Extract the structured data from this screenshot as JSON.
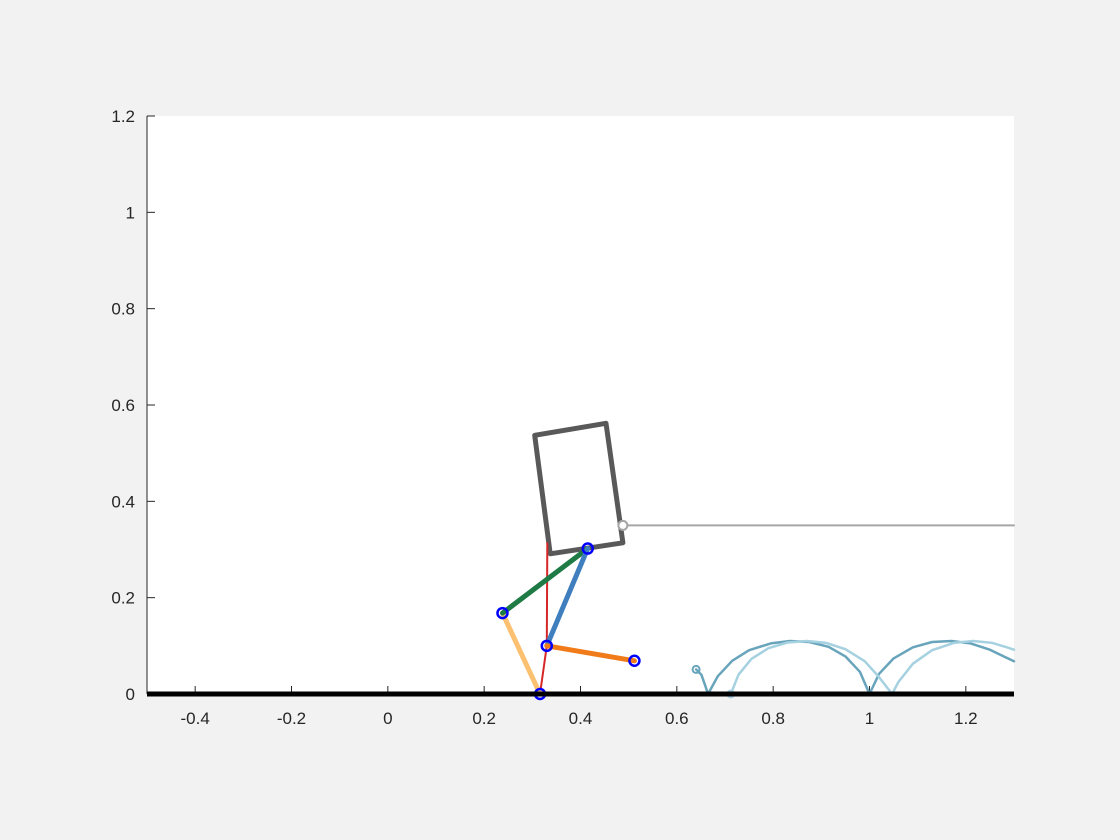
{
  "chart_data": {
    "type": "line",
    "title": "",
    "xlabel": "",
    "ylabel": "",
    "xlim": [
      -0.5,
      1.3
    ],
    "ylim": [
      0,
      1.2
    ],
    "xticks": [
      -0.4,
      -0.2,
      0,
      0.2,
      0.4,
      0.6,
      0.8,
      1,
      1.2
    ],
    "xtick_labels": [
      "-0.4",
      "-0.2",
      "0",
      "0.2",
      "0.4",
      "0.6",
      "0.8",
      "1",
      "1.2"
    ],
    "yticks": [
      0,
      0.2,
      0.4,
      0.6,
      0.8,
      1,
      1.2
    ],
    "ytick_labels": [
      "0",
      "0.2",
      "0.4",
      "0.6",
      "0.8",
      "1",
      "1.2"
    ],
    "grid": false,
    "legend": "none",
    "ground": {
      "y": 0,
      "color": "#000000"
    },
    "body_outline": {
      "color": "#595959",
      "points": [
        [
          0.305,
          0.537
        ],
        [
          0.453,
          0.562
        ],
        [
          0.488,
          0.314
        ],
        [
          0.337,
          0.291
        ]
      ]
    },
    "segments": [
      {
        "name": "",
        "color": "#d62728",
        "width": 2,
        "points": [
          [
            0.316,
            0.0
          ],
          [
            0.33,
            0.1
          ],
          [
            0.331,
            0.313
          ]
        ]
      },
      {
        "name": "",
        "color": "#fbc171",
        "width": 5,
        "points": [
          [
            0.316,
            0.0
          ],
          [
            0.238,
            0.168
          ]
        ]
      },
      {
        "name": "",
        "color": "#1e7b45",
        "width": 5,
        "points": [
          [
            0.238,
            0.168
          ],
          [
            0.415,
            0.302
          ]
        ]
      },
      {
        "name": "",
        "color": "#3f7fbe",
        "width": 5,
        "points": [
          [
            0.33,
            0.1
          ],
          [
            0.415,
            0.302
          ]
        ]
      },
      {
        "name": "",
        "color": "#f07b18",
        "width": 5,
        "points": [
          [
            0.33,
            0.1
          ],
          [
            0.512,
            0.069
          ]
        ]
      },
      {
        "name": "",
        "color": "#a6a6a6",
        "width": 2,
        "points": [
          [
            0.488,
            0.35
          ],
          [
            1.3,
            0.35
          ]
        ]
      }
    ],
    "joints": {
      "color": "#0000ff",
      "points": [
        [
          0.316,
          0.0
        ],
        [
          0.238,
          0.168
        ],
        [
          0.415,
          0.302
        ],
        [
          0.33,
          0.1
        ],
        [
          0.512,
          0.069
        ]
      ]
    },
    "hip_marker": {
      "color": "#a6a6a6",
      "point": [
        0.488,
        0.35
      ]
    },
    "trajectories": [
      {
        "name": "",
        "color": "#68a4bb",
        "start_marker": [
          0.64,
          0.051
        ],
        "points": [
          [
            0.64,
            0.051
          ],
          [
            0.651,
            0.04
          ],
          [
            0.658,
            0.02
          ],
          [
            0.665,
            0.0
          ],
          [
            0.685,
            0.037
          ],
          [
            0.715,
            0.069
          ],
          [
            0.75,
            0.091
          ],
          [
            0.795,
            0.105
          ],
          [
            0.835,
            0.11
          ],
          [
            0.875,
            0.108
          ],
          [
            0.915,
            0.098
          ],
          [
            0.95,
            0.078
          ],
          [
            0.98,
            0.046
          ],
          [
            1.0,
            0.0
          ],
          [
            1.02,
            0.042
          ],
          [
            1.05,
            0.074
          ],
          [
            1.09,
            0.097
          ],
          [
            1.13,
            0.108
          ],
          [
            1.17,
            0.11
          ],
          [
            1.21,
            0.105
          ],
          [
            1.25,
            0.092
          ],
          [
            1.285,
            0.075
          ],
          [
            1.3,
            0.068
          ]
        ]
      },
      {
        "name": "",
        "color": "#a6d1e0",
        "start_marker": [
          0.712,
          0.0
        ],
        "points": [
          [
            0.712,
            0.0
          ],
          [
            0.728,
            0.04
          ],
          [
            0.755,
            0.073
          ],
          [
            0.79,
            0.095
          ],
          [
            0.83,
            0.107
          ],
          [
            0.87,
            0.11
          ],
          [
            0.91,
            0.106
          ],
          [
            0.95,
            0.093
          ],
          [
            0.99,
            0.068
          ],
          [
            1.02,
            0.035
          ],
          [
            1.047,
            0.0
          ],
          [
            1.06,
            0.025
          ],
          [
            1.09,
            0.063
          ],
          [
            1.13,
            0.091
          ],
          [
            1.175,
            0.106
          ],
          [
            1.215,
            0.11
          ],
          [
            1.255,
            0.106
          ],
          [
            1.285,
            0.097
          ],
          [
            1.3,
            0.092
          ]
        ]
      }
    ]
  }
}
